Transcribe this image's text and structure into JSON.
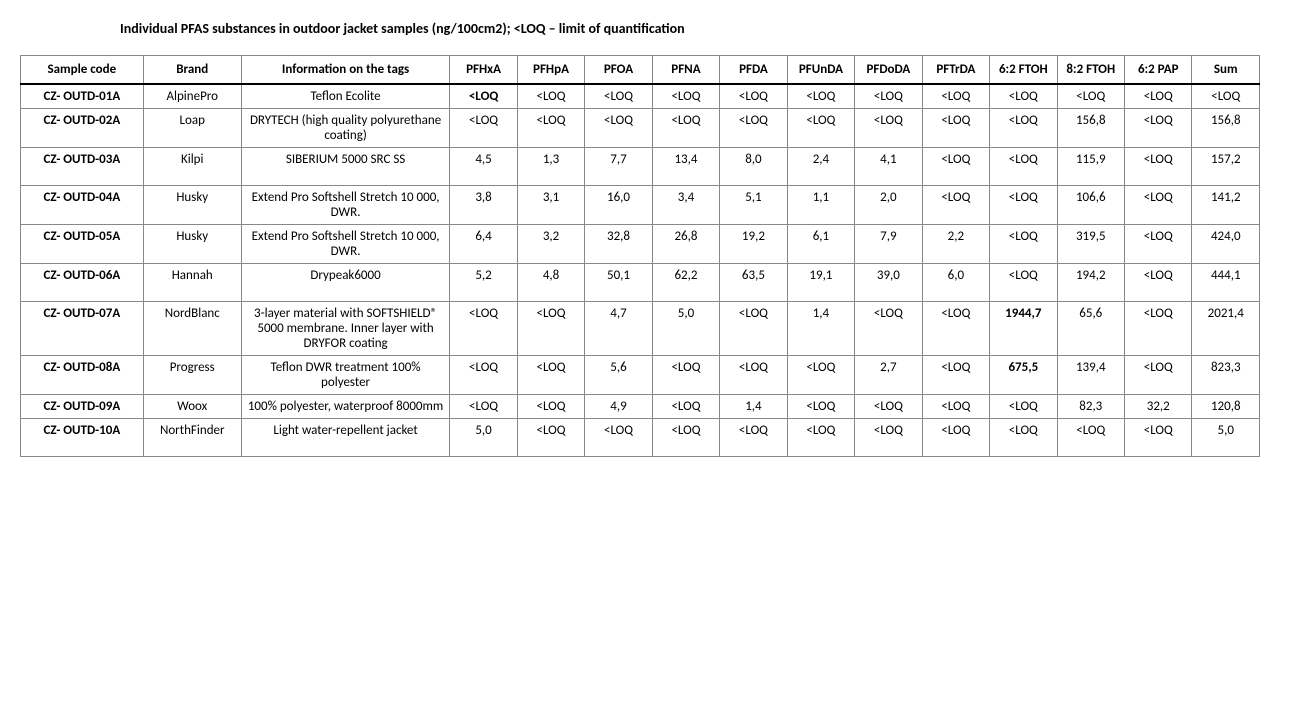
{
  "title": "Individual PFAS substances in outdoor jacket samples (ng/100cm2); <LOQ – limit of quantification",
  "columns": [
    "Sample code",
    "Brand",
    "Information on the tags",
    "PFHxA",
    "PFHpA",
    "PFOA",
    "PFNA",
    "PFDA",
    "PFUnDA",
    "PFDoDA",
    "PFTrDA",
    "6:2 FTOH",
    "8:2 FTOH",
    "6:2 PAP",
    "Sum"
  ],
  "rows": [
    {
      "sample": "CZ- OUTD-01A",
      "brand": "AlpinePro",
      "info": "Teflon Ecolite",
      "vals": [
        "<LOQ",
        "<LOQ",
        "<LOQ",
        "<LOQ",
        "<LOQ",
        "<LOQ",
        "<LOQ",
        "<LOQ",
        "<LOQ",
        "<LOQ",
        "<LOQ",
        "<LOQ"
      ],
      "bold": [
        0
      ]
    },
    {
      "sample": "CZ- OUTD-02A",
      "brand": "Loap",
      "info": "DRYTECH (high quality polyurethane coating)",
      "vals": [
        "<LOQ",
        "<LOQ",
        "<LOQ",
        "<LOQ",
        "<LOQ",
        "<LOQ",
        "<LOQ",
        "<LOQ",
        "<LOQ",
        "156,8",
        "<LOQ",
        "156,8"
      ],
      "bold": []
    },
    {
      "sample": "CZ- OUTD-03A",
      "brand": "Kilpi",
      "info": "SIBERIUM 5000 SRC SS",
      "vals": [
        "4,5",
        "1,3",
        "7,7",
        "13,4",
        "8,0",
        "2,4",
        "4,1",
        "<LOQ",
        "<LOQ",
        "115,9",
        "<LOQ",
        "157,2"
      ],
      "bold": [],
      "tall": true
    },
    {
      "sample": "CZ- OUTD-04A",
      "brand": "Husky",
      "info": "Extend Pro Softshell Stretch 10 000, DWR.",
      "vals": [
        "3,8",
        "3,1",
        "16,0",
        "3,4",
        "5,1",
        "1,1",
        "2,0",
        "<LOQ",
        "<LOQ",
        "106,6",
        "<LOQ",
        "141,2"
      ],
      "bold": []
    },
    {
      "sample": "CZ- OUTD-05A",
      "brand": "Husky",
      "info": "Extend Pro Softshell Stretch 10 000, DWR.",
      "vals": [
        "6,4",
        "3,2",
        "32,8",
        "26,8",
        "19,2",
        "6,1",
        "7,9",
        "2,2",
        "<LOQ",
        "319,5",
        "<LOQ",
        "424,0"
      ],
      "bold": []
    },
    {
      "sample": "CZ- OUTD-06A",
      "brand": "Hannah",
      "info": "Drypeak6000",
      "vals": [
        "5,2",
        "4,8",
        "50,1",
        "62,2",
        "63,5",
        "19,1",
        "39,0",
        "6,0",
        "<LOQ",
        "194,2",
        "<LOQ",
        "444,1"
      ],
      "bold": [],
      "tall": true
    },
    {
      "sample": "CZ- OUTD-07A",
      "brand": "NordBlanc",
      "info": "3-layer material with SOFTSHIELD® 5000 membrane. Inner layer with DRYFOR coating",
      "vals": [
        "<LOQ",
        "<LOQ",
        "4,7",
        "5,0",
        "<LOQ",
        "1,4",
        "<LOQ",
        "<LOQ",
        "1944,7",
        "65,6",
        "<LOQ",
        "2021,4"
      ],
      "bold": [
        8
      ]
    },
    {
      "sample": "CZ- OUTD-08A",
      "brand": "Progress",
      "info": "Teflon DWR treatment 100% polyester",
      "vals": [
        "<LOQ",
        "<LOQ",
        "5,6",
        "<LOQ",
        "<LOQ",
        "<LOQ",
        "2,7",
        "<LOQ",
        "675,5",
        "139,4",
        "<LOQ",
        "823,3"
      ],
      "bold": [
        8
      ]
    },
    {
      "sample": "CZ- OUTD-09A",
      "brand": "Woox",
      "info": "100% polyester, waterproof 8000mm",
      "vals": [
        "<LOQ",
        "<LOQ",
        "4,9",
        "<LOQ",
        "1,4",
        "<LOQ",
        "<LOQ",
        "<LOQ",
        "<LOQ",
        "82,3",
        "32,2",
        "120,8"
      ],
      "bold": []
    },
    {
      "sample": "CZ- OUTD-10A",
      "brand": "NorthFinder",
      "info": "Light water-repellent jacket",
      "vals": [
        "5,0",
        "<LOQ",
        "<LOQ",
        "<LOQ",
        "<LOQ",
        "<LOQ",
        "<LOQ",
        "<LOQ",
        "<LOQ",
        "<LOQ",
        "<LOQ",
        "5,0"
      ],
      "bold": [],
      "tall": true
    }
  ]
}
